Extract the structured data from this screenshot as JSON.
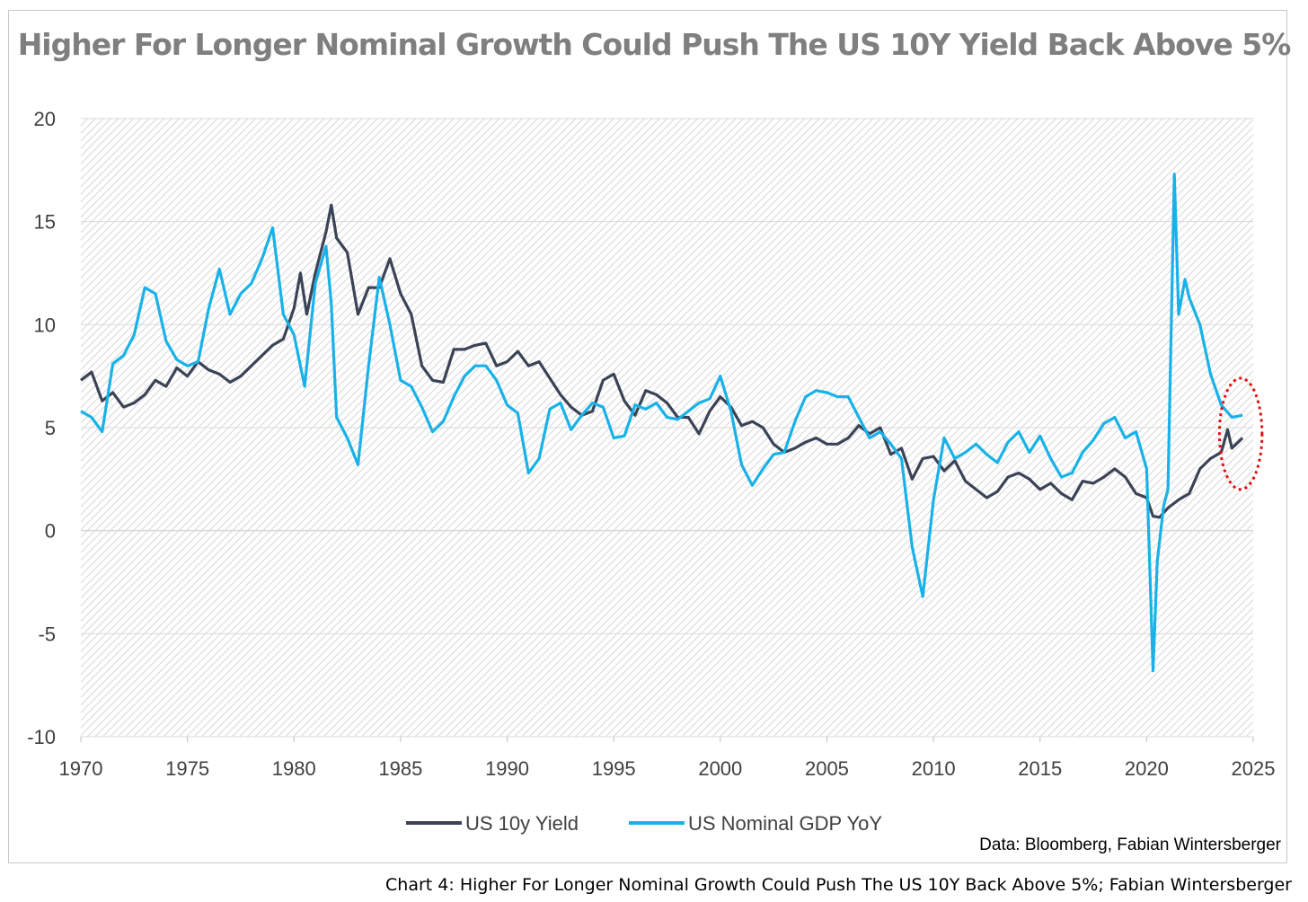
{
  "title": "Higher For Longer Nominal Growth Could Push The US 10Y Yield Back Above 5%",
  "source": "Data: Bloomberg, Fabian Wintersberger",
  "caption": "Chart 4: Higher For Longer Nominal Growth Could Push The US 10Y Back Above 5%; Fabian Wintersberger",
  "colors": {
    "yield": "#3b4357",
    "gdp": "#19b2e8",
    "circle": "#e01010",
    "grid": "#d9d9d9"
  },
  "chart_data": {
    "type": "line",
    "title": "Higher For Longer Nominal Growth Could Push The US 10Y Yield Back Above 5%",
    "xlim": [
      1970,
      2025
    ],
    "ylim": [
      -10,
      20
    ],
    "x_ticks": [
      "1970",
      "1975",
      "1980",
      "1985",
      "1990",
      "1995",
      "2000",
      "2005",
      "2010",
      "2015",
      "2020",
      "2025"
    ],
    "y_ticks": [
      "20",
      "15",
      "10",
      "5",
      "0",
      "-5",
      "-10"
    ],
    "grid": "horizontal",
    "legend": "bottom",
    "series": [
      {
        "name": "US 10y Yield",
        "x": [
          1970.0,
          1970.5,
          1971.0,
          1971.5,
          1972.0,
          1972.5,
          1973.0,
          1973.5,
          1974.0,
          1974.5,
          1975.0,
          1975.5,
          1976.0,
          1976.5,
          1977.0,
          1977.5,
          1978.0,
          1978.5,
          1979.0,
          1979.5,
          1980.0,
          1980.3,
          1980.6,
          1981.0,
          1981.5,
          1981.75,
          1982.0,
          1982.5,
          1983.0,
          1983.5,
          1984.0,
          1984.5,
          1985.0,
          1985.5,
          1986.0,
          1986.5,
          1987.0,
          1987.5,
          1988.0,
          1988.5,
          1989.0,
          1989.5,
          1990.0,
          1990.5,
          1991.0,
          1991.5,
          1992.0,
          1992.5,
          1993.0,
          1993.5,
          1994.0,
          1994.5,
          1995.0,
          1995.5,
          1996.0,
          1996.5,
          1997.0,
          1997.5,
          1998.0,
          1998.5,
          1999.0,
          1999.5,
          2000.0,
          2000.5,
          2001.0,
          2001.5,
          2002.0,
          2002.5,
          2003.0,
          2003.5,
          2004.0,
          2004.5,
          2005.0,
          2005.5,
          2006.0,
          2006.5,
          2007.0,
          2007.5,
          2008.0,
          2008.5,
          2009.0,
          2009.5,
          2010.0,
          2010.5,
          2011.0,
          2011.5,
          2012.0,
          2012.5,
          2013.0,
          2013.5,
          2014.0,
          2014.5,
          2015.0,
          2015.5,
          2016.0,
          2016.5,
          2017.0,
          2017.5,
          2018.0,
          2018.5,
          2019.0,
          2019.5,
          2020.0,
          2020.3,
          2020.6,
          2021.0,
          2021.5,
          2022.0,
          2022.5,
          2023.0,
          2023.5,
          2023.8,
          2024.0,
          2024.5
        ],
        "values": [
          7.3,
          7.7,
          6.3,
          6.7,
          6.0,
          6.2,
          6.6,
          7.3,
          7.0,
          7.9,
          7.5,
          8.2,
          7.8,
          7.6,
          7.2,
          7.5,
          8.0,
          8.5,
          9.0,
          9.3,
          10.8,
          12.5,
          10.5,
          12.5,
          14.5,
          15.8,
          14.2,
          13.5,
          10.5,
          11.8,
          11.8,
          13.2,
          11.5,
          10.5,
          8.0,
          7.3,
          7.2,
          8.8,
          8.8,
          9.0,
          9.1,
          8.0,
          8.2,
          8.7,
          8.0,
          8.2,
          7.4,
          6.6,
          6.0,
          5.6,
          5.8,
          7.3,
          7.6,
          6.3,
          5.6,
          6.8,
          6.6,
          6.2,
          5.5,
          5.5,
          4.7,
          5.8,
          6.5,
          6.0,
          5.1,
          5.3,
          5.0,
          4.2,
          3.8,
          4.0,
          4.3,
          4.5,
          4.2,
          4.2,
          4.5,
          5.1,
          4.7,
          5.0,
          3.7,
          4.0,
          2.5,
          3.5,
          3.6,
          2.9,
          3.4,
          2.4,
          2.0,
          1.6,
          1.9,
          2.6,
          2.8,
          2.5,
          2.0,
          2.3,
          1.8,
          1.5,
          2.4,
          2.3,
          2.6,
          3.0,
          2.6,
          1.8,
          1.6,
          0.7,
          0.65,
          1.1,
          1.5,
          1.8,
          3.0,
          3.5,
          3.8,
          4.9,
          4.0,
          4.5
        ]
      },
      {
        "name": "US Nominal GDP YoY",
        "x": [
          1970.0,
          1970.5,
          1971.0,
          1971.5,
          1972.0,
          1972.5,
          1973.0,
          1973.5,
          1974.0,
          1974.5,
          1975.0,
          1975.5,
          1976.0,
          1976.5,
          1977.0,
          1977.5,
          1978.0,
          1978.5,
          1979.0,
          1979.5,
          1980.0,
          1980.5,
          1981.0,
          1981.5,
          1981.75,
          1982.0,
          1982.5,
          1983.0,
          1983.5,
          1984.0,
          1984.5,
          1985.0,
          1985.5,
          1986.0,
          1986.5,
          1987.0,
          1987.5,
          1988.0,
          1988.5,
          1989.0,
          1989.5,
          1990.0,
          1990.5,
          1991.0,
          1991.5,
          1992.0,
          1992.5,
          1993.0,
          1993.5,
          1994.0,
          1994.5,
          1995.0,
          1995.5,
          1996.0,
          1996.5,
          1997.0,
          1997.5,
          1998.0,
          1998.5,
          1999.0,
          1999.5,
          2000.0,
          2000.5,
          2001.0,
          2001.5,
          2002.0,
          2002.5,
          2003.0,
          2003.5,
          2004.0,
          2004.5,
          2005.0,
          2005.5,
          2006.0,
          2006.5,
          2007.0,
          2007.5,
          2008.0,
          2008.5,
          2009.0,
          2009.5,
          2010.0,
          2010.5,
          2011.0,
          2011.5,
          2012.0,
          2012.5,
          2013.0,
          2013.5,
          2014.0,
          2014.5,
          2015.0,
          2015.5,
          2016.0,
          2016.5,
          2017.0,
          2017.5,
          2018.0,
          2018.5,
          2019.0,
          2019.5,
          2020.0,
          2020.3,
          2020.5,
          2020.8,
          2021.0,
          2021.3,
          2021.5,
          2021.8,
          2022.0,
          2022.5,
          2023.0,
          2023.5,
          2024.0,
          2024.5
        ],
        "values": [
          5.8,
          5.5,
          4.8,
          8.1,
          8.5,
          9.5,
          11.8,
          11.5,
          9.2,
          8.3,
          8.0,
          8.2,
          10.8,
          12.7,
          10.5,
          11.5,
          12.0,
          13.2,
          14.7,
          10.5,
          9.5,
          7.0,
          12.0,
          13.8,
          11.0,
          5.5,
          4.5,
          3.2,
          8.0,
          12.3,
          10.0,
          7.3,
          7.0,
          6.0,
          4.8,
          5.3,
          6.5,
          7.5,
          8.0,
          8.0,
          7.3,
          6.1,
          5.7,
          2.8,
          3.5,
          5.9,
          6.2,
          4.9,
          5.6,
          6.2,
          6.0,
          4.5,
          4.6,
          6.1,
          5.9,
          6.2,
          5.5,
          5.4,
          5.8,
          6.2,
          6.4,
          7.5,
          5.8,
          3.2,
          2.2,
          3.0,
          3.7,
          3.8,
          5.3,
          6.5,
          6.8,
          6.7,
          6.5,
          6.5,
          5.5,
          4.5,
          4.8,
          4.2,
          3.5,
          -0.8,
          -3.2,
          1.5,
          4.5,
          3.5,
          3.8,
          4.2,
          3.7,
          3.3,
          4.3,
          4.8,
          3.8,
          4.6,
          3.5,
          2.6,
          2.8,
          3.8,
          4.4,
          5.2,
          5.5,
          4.5,
          4.8,
          3.0,
          -6.8,
          -1.5,
          1.2,
          2.0,
          17.3,
          10.5,
          12.2,
          11.3,
          10.0,
          7.6,
          6.1,
          5.5,
          5.6
        ]
      }
    ],
    "annotations": [
      {
        "type": "ellipse",
        "x": 2024.5,
        "y": 4.7,
        "rx_years": 1.0,
        "ry_units": 2.7
      }
    ]
  }
}
